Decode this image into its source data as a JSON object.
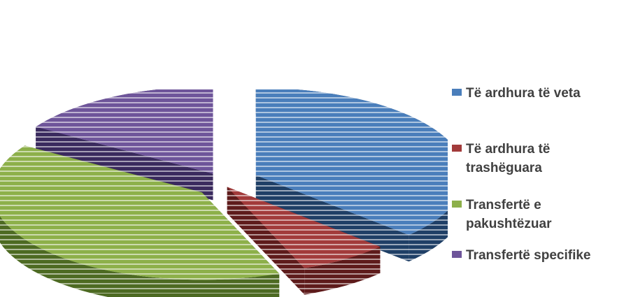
{
  "chart_data": {
    "type": "pie",
    "exploded": true,
    "three_d": true,
    "title": "",
    "subtitle": "",
    "series": [
      {
        "categories": [
          "Të ardhura të veta",
          "Të ardhura të trashëguara",
          "Transfertë e pakushtëzuar",
          "Transfertë specifike"
        ],
        "values": [
          37,
          7,
          40,
          16
        ]
      }
    ],
    "legend": {
      "position": "right",
      "entries": [
        "Të ardhura të veta",
        "Të ardhura të trashëguara",
        "Transfertë e pakushtëzuar",
        "Transfertë specifike"
      ]
    },
    "colors": [
      "#4a7ebb",
      "#a23b3b",
      "#8db04a",
      "#6e559a"
    ],
    "side_colors": [
      "#1f3f66",
      "#5e1b1b",
      "#4d6a22",
      "#3a2a5e"
    ]
  },
  "title_block": {
    "line1": "",
    "line2": ""
  }
}
